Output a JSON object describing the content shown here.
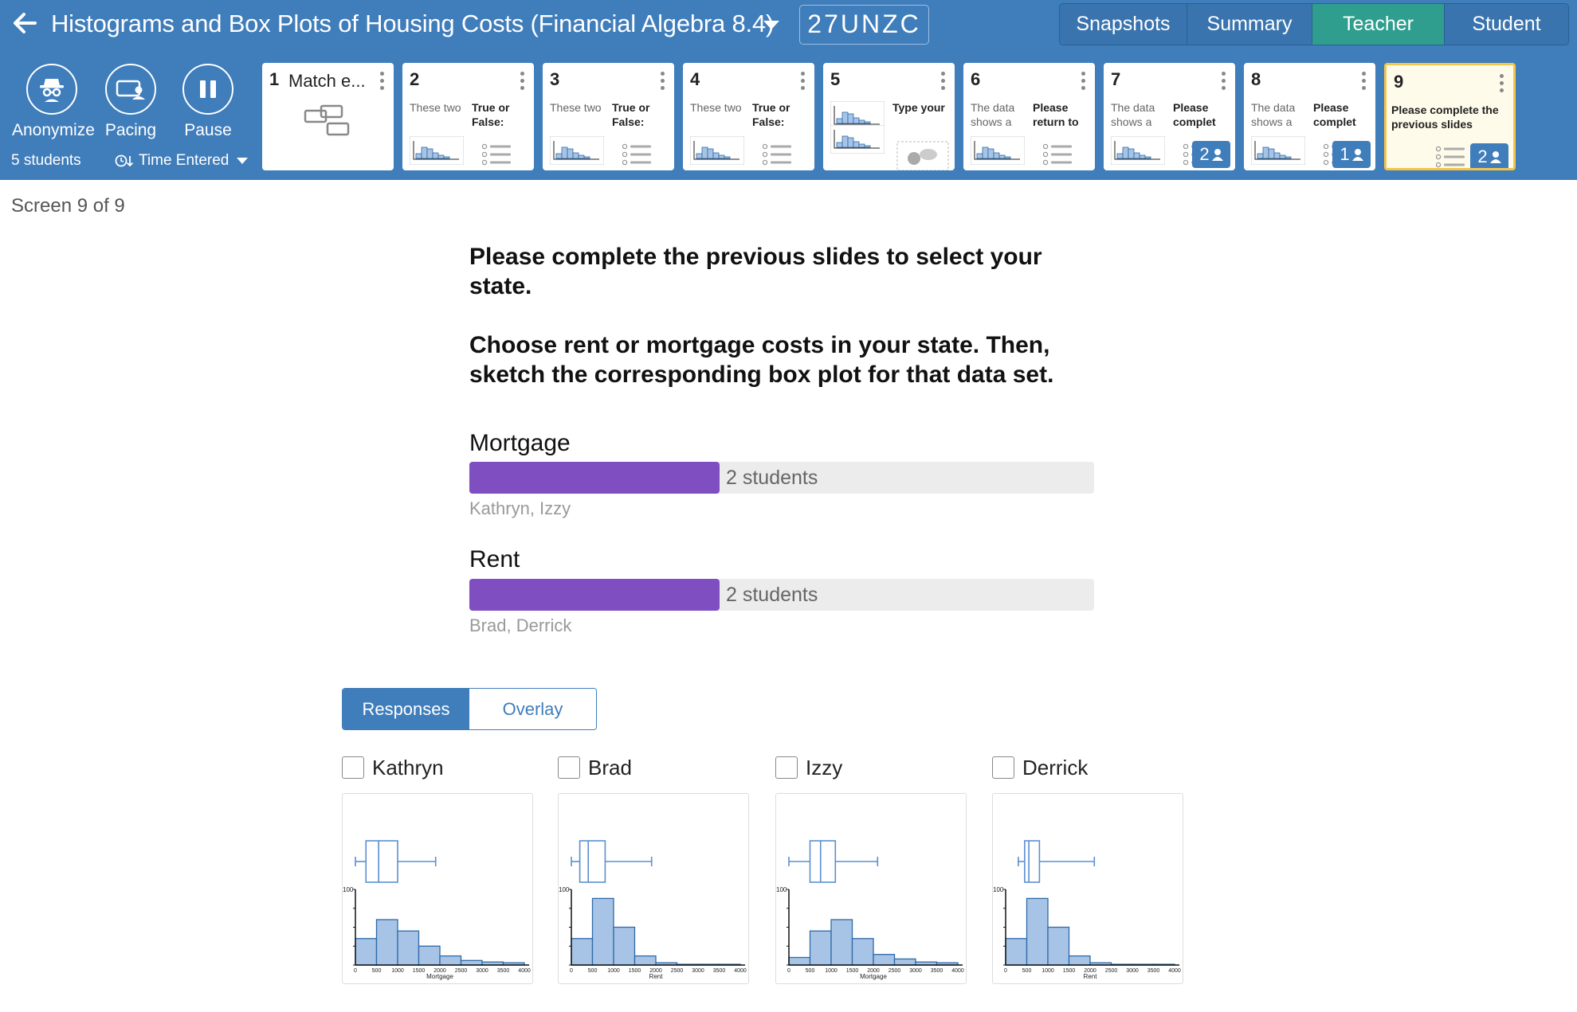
{
  "header": {
    "title": "Histograms and Box Plots of Housing Costs (Financial Algebra 8.4)",
    "class_code": "27UNZC",
    "view_tabs": [
      {
        "label": "Snapshots",
        "active": false
      },
      {
        "label": "Summary",
        "active": false
      },
      {
        "label": "Teacher",
        "active": true
      },
      {
        "label": "Student",
        "active": false
      }
    ],
    "colors": {
      "bar_background": "#3f7dbb",
      "active_tab": "#2f9e8e"
    }
  },
  "toolbar": {
    "anonymize_label": "Anonymize",
    "pacing_label": "Pacing",
    "pause_label": "Pause",
    "student_count": "5 students",
    "sort_label": "Time Entered",
    "icons": [
      "spy-icon",
      "pacing-icon",
      "pause-icon",
      "clock-sort-icon"
    ]
  },
  "slides": [
    {
      "num": "1",
      "title": "Match e...",
      "kind": "card-sort"
    },
    {
      "num": "2",
      "text1": "These two",
      "text2": "True or False:",
      "kind": "hist-list"
    },
    {
      "num": "3",
      "text1": "These two",
      "text2": "True or False:",
      "kind": "hist-list"
    },
    {
      "num": "4",
      "text1": "These two",
      "text2": "True or False:",
      "kind": "hist-list"
    },
    {
      "num": "5",
      "text2": "Type your",
      "kind": "hist-chat"
    },
    {
      "num": "6",
      "text1": "The data shows a",
      "text2": "Please return to",
      "kind": "hist-list"
    },
    {
      "num": "7",
      "text1": "The data shows a",
      "text2": "Please complet",
      "kind": "hist-list",
      "badge": "2"
    },
    {
      "num": "8",
      "text1": "The data shows a",
      "text2": "Please complet",
      "kind": "hist-list",
      "badge": "1"
    },
    {
      "num": "9",
      "text2": "Please complete the previous slides",
      "kind": "list",
      "badge": "2",
      "selected": true
    }
  ],
  "main": {
    "screen_indicator": "Screen 9 of 9",
    "prompt_line1": "Please complete the previous slides to select your state.",
    "prompt_line2": "Choose rent or mortgage costs in your state. Then, sketch the corresponding box plot for that data set.",
    "choices": [
      {
        "label": "Mortgage",
        "count": "2 students",
        "fraction": 0.4,
        "names": "Kathryn, Izzy"
      },
      {
        "label": "Rent",
        "count": "2 students",
        "fraction": 0.4,
        "names": "Brad, Derrick"
      }
    ],
    "choice_color": "#7f4fc2",
    "toggle": {
      "responses": "Responses",
      "overlay": "Overlay",
      "active": "responses"
    }
  },
  "responses": [
    {
      "name": "Kathryn",
      "box": {
        "min": 0,
        "q1": 250,
        "median": 550,
        "q3": 1000,
        "max": 1900
      },
      "histogram": {
        "xlabel": "Mortgage",
        "counts": [
          35,
          60,
          45,
          25,
          12,
          6,
          4,
          3
        ],
        "bin_start": 0,
        "bin_width": 500,
        "ylabel_tick": "100",
        "y_max": 100
      }
    },
    {
      "name": "Brad",
      "box": {
        "min": 0,
        "q1": 200,
        "median": 400,
        "q3": 800,
        "max": 1900
      },
      "histogram": {
        "xlabel": "Rent",
        "counts": [
          35,
          88,
          50,
          12,
          3,
          1,
          1,
          1
        ],
        "bin_start": 0,
        "bin_width": 500,
        "ylabel_tick": "100",
        "y_max": 100
      }
    },
    {
      "name": "Izzy",
      "box": {
        "min": 0,
        "q1": 500,
        "median": 750,
        "q3": 1100,
        "max": 2100
      },
      "histogram": {
        "xlabel": "Mortgage",
        "counts": [
          10,
          45,
          60,
          35,
          14,
          8,
          4,
          3
        ],
        "bin_start": 0,
        "bin_width": 500,
        "ylabel_tick": "100",
        "y_max": 100
      }
    },
    {
      "name": "Derrick",
      "box": {
        "min": 300,
        "q1": 450,
        "median": 550,
        "q3": 800,
        "max": 2100
      },
      "histogram": {
        "xlabel": "Rent",
        "counts": [
          35,
          88,
          50,
          12,
          3,
          1,
          1,
          1
        ],
        "bin_start": 0,
        "bin_width": 500,
        "ylabel_tick": "100",
        "y_max": 100
      }
    }
  ],
  "axis_ticks": [
    "0",
    "500",
    "1000",
    "1500",
    "2000",
    "2500",
    "3000",
    "3500",
    "4000"
  ],
  "plot_colors": {
    "box_stroke": "#5a8fd0",
    "hist_fill": "#a7c4e6",
    "hist_stroke": "#2e6aa8"
  }
}
